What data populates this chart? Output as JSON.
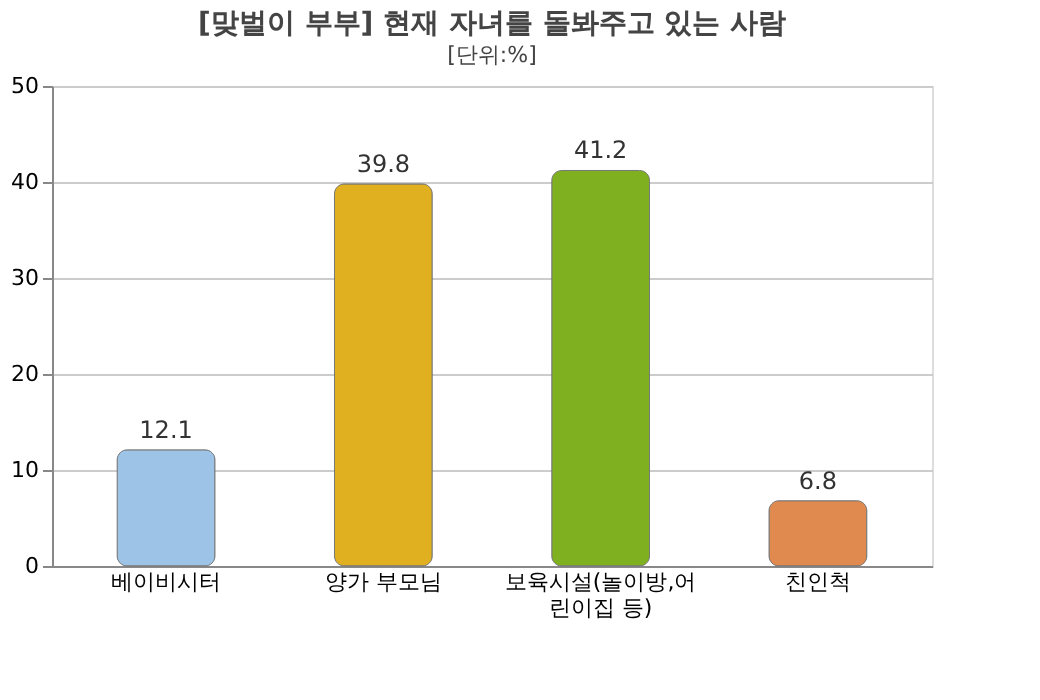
{
  "chart_data": {
    "type": "bar",
    "title": "[맞벌이 부부] 현재 자녀를 돌봐주고 있는 사람",
    "subtitle": "[단위:%]",
    "categories": [
      "베이비시터",
      "양가 부모님",
      "보육시설(놀이방,어린이집 등)",
      "친인척"
    ],
    "values": [
      12.1,
      39.8,
      41.2,
      6.8
    ],
    "colors": [
      "#9dc3e6",
      "#e0b020",
      "#7fb020",
      "#e08a50"
    ],
    "ylim": [
      0,
      50
    ],
    "yticks": [
      0,
      10,
      20,
      30,
      40,
      50
    ],
    "grid": "y",
    "data_labels": true
  }
}
